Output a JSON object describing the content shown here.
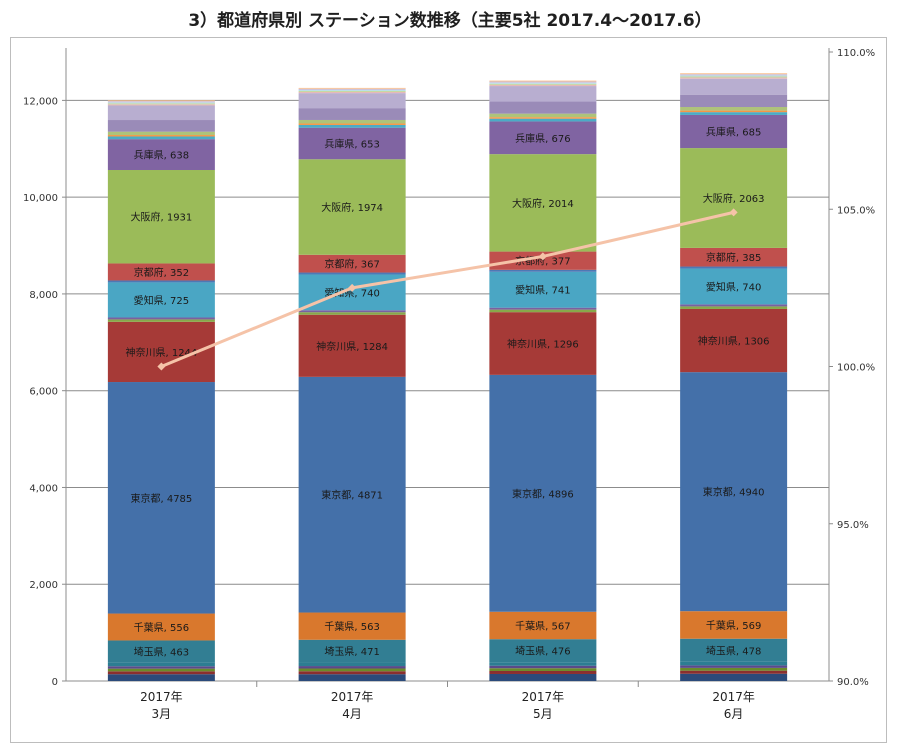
{
  "title": "3）都道府県別 ステーション数推移（主要5社 2017.4～2017.6）",
  "chart_data": {
    "type": "bar",
    "stacked": true,
    "categories": [
      "2017年\n3月",
      "2017年\n4月",
      "2017年\n5月",
      "2017年\n6月"
    ],
    "y_left": {
      "min": 0,
      "max": 13000,
      "ticks": [
        0,
        2000,
        4000,
        6000,
        8000,
        10000,
        12000
      ],
      "tick_labels": [
        "0",
        "2,000",
        "4,000",
        "6,000",
        "8,000",
        "10,000",
        "12,000"
      ]
    },
    "y_right": {
      "min": 90,
      "max": 110,
      "ticks": [
        90,
        95,
        100,
        105,
        110
      ],
      "tick_labels": [
        "90.0%",
        "95.0%",
        "100.0%",
        "105.0%",
        "110.0%"
      ]
    },
    "grid": true,
    "legend": "none",
    "series": [
      {
        "name": "",
        "color": "#2b4a7a",
        "values": [
          140,
          140,
          145,
          150
        ]
      },
      {
        "name": "",
        "color": "#8b2f2e",
        "values": [
          60,
          62,
          62,
          63
        ]
      },
      {
        "name": "",
        "color": "#6a8b2a",
        "values": [
          55,
          56,
          57,
          58
        ]
      },
      {
        "name": "",
        "color": "#5b4a8a",
        "values": [
          50,
          51,
          52,
          52
        ]
      },
      {
        "name": "",
        "color": "#2c7d92",
        "values": [
          70,
          72,
          72,
          73
        ]
      },
      {
        "name": "埼玉県",
        "color": "#327e93",
        "values": [
          463,
          471,
          476,
          478
        ],
        "show_label": true
      },
      {
        "name": "千葉県",
        "color": "#d9782d",
        "values": [
          556,
          563,
          567,
          569
        ],
        "show_label": true
      },
      {
        "name": "東京都",
        "color": "#4470a9",
        "values": [
          4785,
          4871,
          4896,
          4940
        ],
        "show_label": true
      },
      {
        "name": "神奈川県",
        "color": "#a63a37",
        "values": [
          1244,
          1284,
          1296,
          1306
        ],
        "show_label": true
      },
      {
        "name": "",
        "color": "#88a84a",
        "values": [
          50,
          52,
          52,
          53
        ]
      },
      {
        "name": "",
        "color": "#7b60a0",
        "values": [
          40,
          40,
          41,
          42
        ]
      },
      {
        "name": "愛知県",
        "color": "#4aa6c4",
        "values": [
          725,
          740,
          741,
          740
        ],
        "show_label": true
      },
      {
        "name": "",
        "color": "#4d79b5",
        "values": [
          40,
          40,
          41,
          42
        ]
      },
      {
        "name": "京都府",
        "color": "#c0504d",
        "values": [
          352,
          367,
          377,
          385
        ],
        "show_label": true
      },
      {
        "name": "大阪府",
        "color": "#9bbb59",
        "values": [
          1931,
          1974,
          2014,
          2063
        ],
        "show_label": true
      },
      {
        "name": "兵庫県",
        "color": "#8064a2",
        "values": [
          638,
          653,
          676,
          685
        ],
        "show_label": true
      },
      {
        "name": "",
        "color": "#4bacc6",
        "values": [
          55,
          56,
          57,
          58
        ]
      },
      {
        "name": "",
        "color": "#f79646",
        "values": [
          30,
          31,
          31,
          32
        ]
      },
      {
        "name": "",
        "color": "#aec37a",
        "values": [
          70,
          72,
          73,
          74
        ]
      },
      {
        "name": "",
        "color": "#9a8bb8",
        "values": [
          240,
          245,
          250,
          255
        ]
      },
      {
        "name": "",
        "color": "#b8aed0",
        "values": [
          300,
          310,
          320,
          330
        ]
      },
      {
        "name": "",
        "color": "#e6b9b8",
        "values": [
          25,
          25,
          26,
          26
        ]
      },
      {
        "name": "",
        "color": "#c3d69b",
        "values": [
          20,
          20,
          21,
          21
        ]
      },
      {
        "name": "",
        "color": "#b7dee8",
        "values": [
          20,
          20,
          21,
          21
        ]
      },
      {
        "name": "",
        "color": "#ccc1da",
        "values": [
          25,
          25,
          26,
          26
        ]
      },
      {
        "name": "",
        "color": "#fac090",
        "values": [
          18,
          18,
          19,
          19
        ]
      }
    ],
    "line": {
      "name": "",
      "color": "#f5c3a8",
      "axis": "right",
      "values": [
        100.0,
        102.5,
        103.5,
        104.9
      ]
    }
  }
}
